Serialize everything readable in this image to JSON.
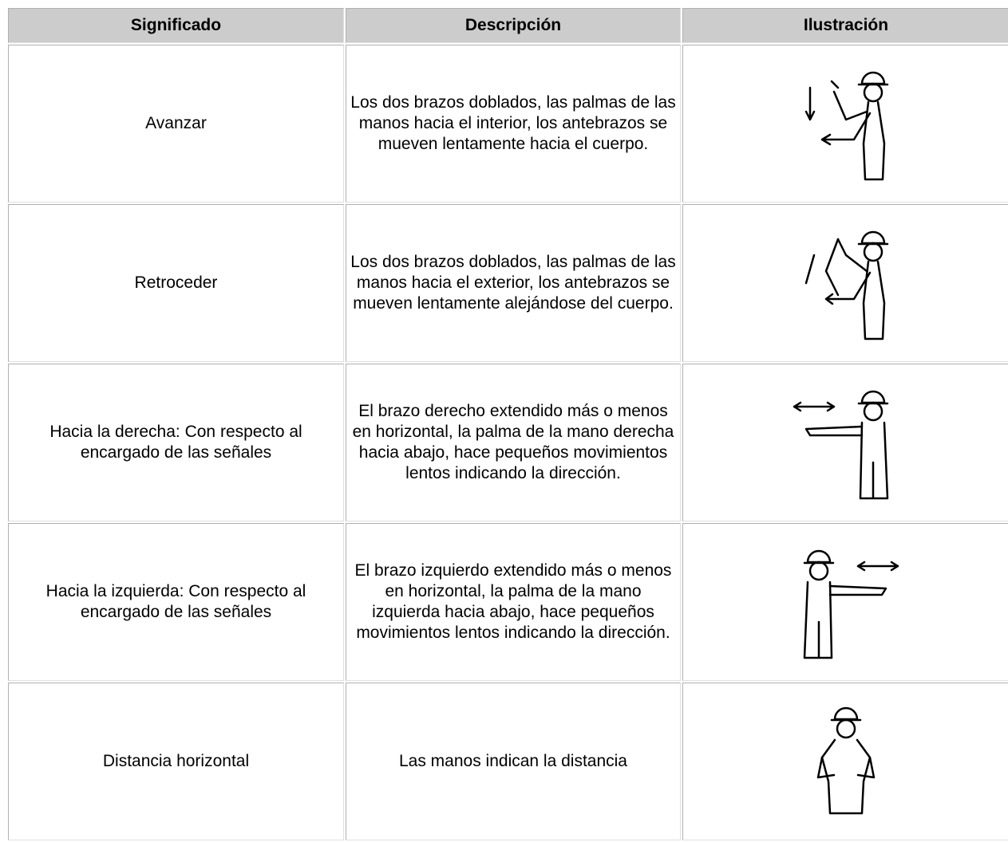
{
  "table": {
    "headers": [
      "Significado",
      "Descripción",
      "Ilustración"
    ],
    "rows": [
      [
        "Avanzar",
        "Los dos brazos doblados, las palmas de las manos hacia el interior, los antebrazos se mueven lentamente hacia el cuerpo."
      ],
      [
        "Retroceder",
        "Los dos brazos doblados, las palmas de las manos hacia el exterior, los antebrazos se mueven lentamente alejándose del cuerpo."
      ],
      [
        "Hacia la derecha: Con respecto al encargado de las señales",
        "El brazo derecho extendido más o menos en horizontal, la palma de la mano derecha hacia abajo, hace pequeños movimientos lentos indicando la dirección."
      ],
      [
        "Hacia la izquierda: Con respecto al encargado de las señales",
        "El brazo izquierdo extendido más o menos en horizontal, la palma de la mano izquierda hacia abajo, hace pequeños movimientos lentos indicando la dirección."
      ],
      [
        "Distancia horizontal",
        "Las manos indican la distancia"
      ]
    ]
  }
}
